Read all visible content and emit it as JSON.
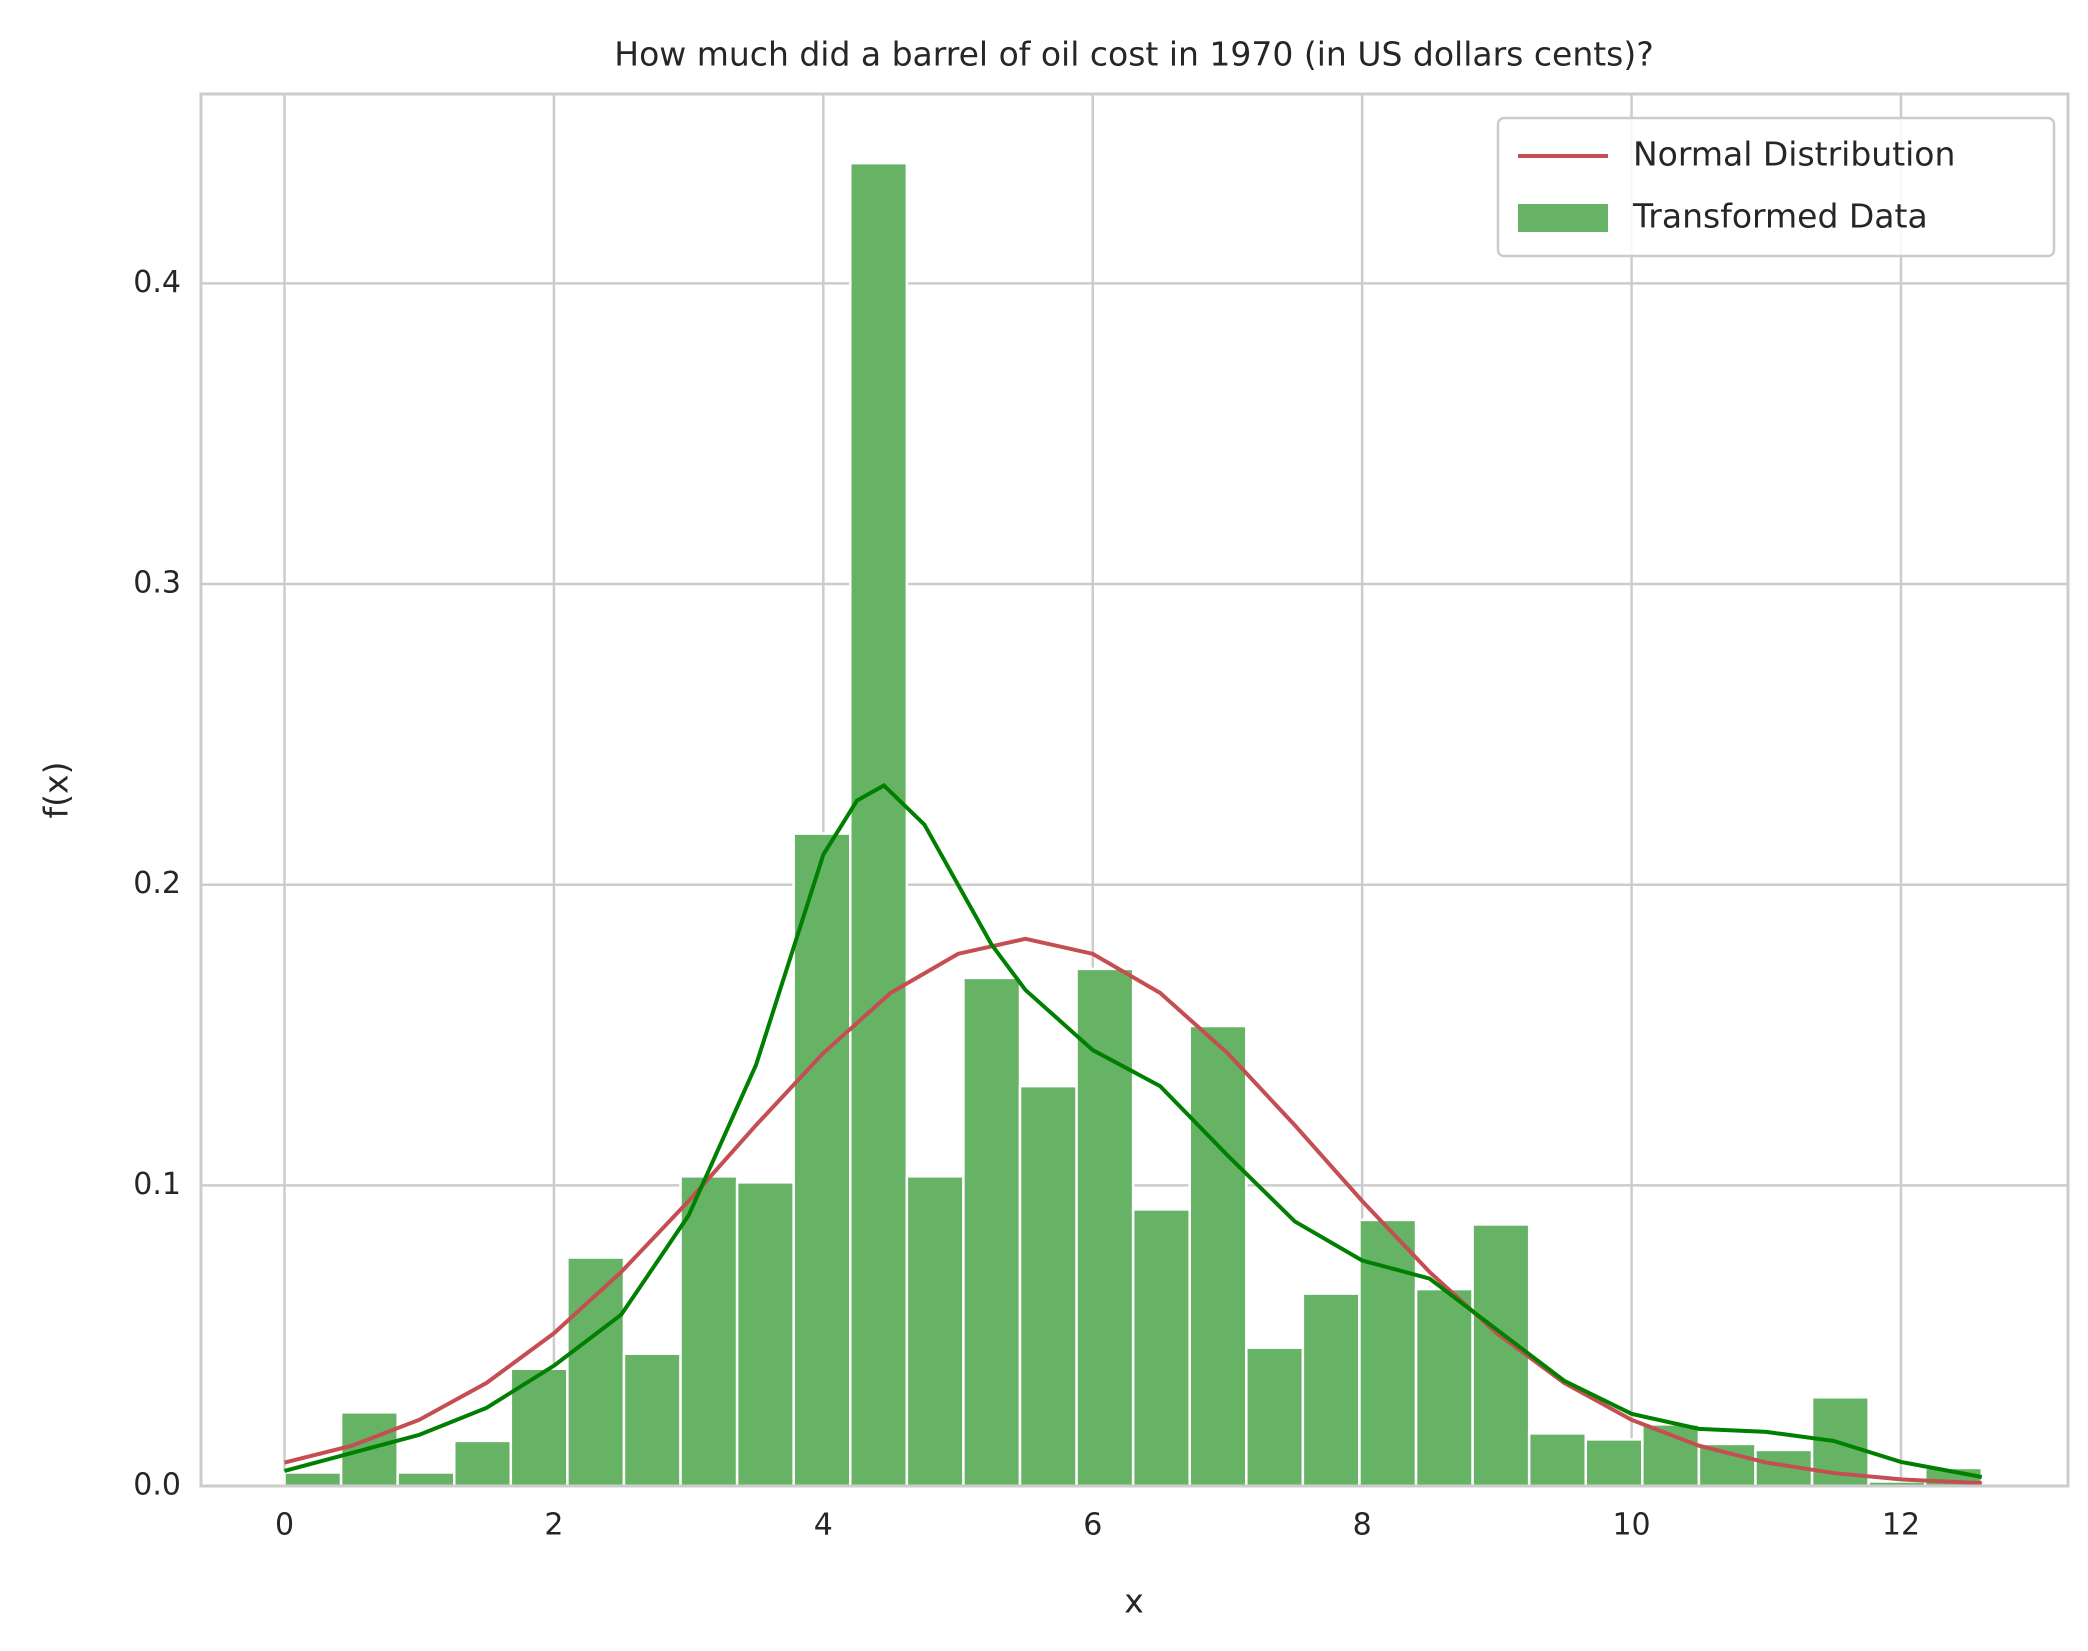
{
  "chart_data": {
    "type": "histogram",
    "title": "How much did a barrel of oil cost in 1970 (in US dollars cents)?",
    "x_label": "x",
    "y_label": "f(x)",
    "name": "Transformed Data",
    "color": "#66b366",
    "bins": [
      0,
      0.42,
      0.84,
      1.26,
      1.68,
      2.1,
      2.52,
      2.94,
      3.36,
      3.78,
      4.2,
      4.62,
      5.04,
      5.46,
      5.88,
      6.3,
      6.72,
      7.14,
      7.56,
      7.98,
      8.4,
      8.82,
      9.24,
      9.66,
      10.08,
      10.5,
      10.92,
      11.34,
      11.76,
      12.18,
      12.6
    ],
    "values": [
      0.0045,
      0.0245,
      0.0045,
      0.015,
      0.039,
      0.076,
      0.044,
      0.103,
      0.101,
      0.217,
      0.44,
      0.103,
      0.169,
      0.133,
      0.172,
      0.092,
      0.153,
      0.046,
      0.064,
      0.0885,
      0.0655,
      0.087,
      0.0175,
      0.0155,
      0.0205,
      0.014,
      0.012,
      0.0295,
      0.0015,
      0.006
    ],
    "lines": [
      {
        "name": "Normal Distribution",
        "color": "#c44e52",
        "x": [
          0,
          0.5,
          1,
          1.5,
          2,
          2.5,
          3,
          3.5,
          4,
          4.5,
          5,
          5.5,
          6,
          6.5,
          7,
          7.5,
          8,
          8.5,
          9,
          9.5,
          10,
          10.5,
          11,
          11.5,
          12,
          12.6
        ],
        "values": [
          0.0078,
          0.0134,
          0.022,
          0.0343,
          0.0508,
          0.0712,
          0.0948,
          0.12,
          0.144,
          0.164,
          0.177,
          0.182,
          0.177,
          0.164,
          0.144,
          0.12,
          0.0948,
          0.0712,
          0.0508,
          0.0343,
          0.022,
          0.0134,
          0.0078,
          0.0043,
          0.0022,
          0.00095
        ]
      },
      {
        "color": "#008000",
        "x": [
          0,
          0.5,
          1,
          1.5,
          2,
          2.5,
          3,
          3.5,
          3.75,
          4,
          4.25,
          4.45,
          4.75,
          5,
          5.25,
          5.5,
          6,
          6.5,
          7,
          7.5,
          8,
          8.5,
          9,
          9.5,
          10,
          10.5,
          11,
          11.5,
          12,
          12.6
        ],
        "values": [
          0.005,
          0.011,
          0.017,
          0.026,
          0.04,
          0.057,
          0.09,
          0.14,
          0.175,
          0.21,
          0.228,
          0.233,
          0.22,
          0.2,
          0.18,
          0.165,
          0.145,
          0.133,
          0.11,
          0.088,
          0.075,
          0.069,
          0.052,
          0.035,
          0.024,
          0.019,
          0.018,
          0.015,
          0.008,
          0.003
        ]
      }
    ],
    "xlim": [
      -0.62,
      13.24
    ],
    "ylim": [
      0,
      0.463
    ],
    "xticks": [
      0,
      2,
      4,
      6,
      8,
      10,
      12
    ],
    "yticks": [
      {
        "value": 0,
        "label": "0.0"
      },
      0.1,
      0.2,
      0.3,
      0.4
    ],
    "grid": true,
    "legend": "upper right"
  }
}
